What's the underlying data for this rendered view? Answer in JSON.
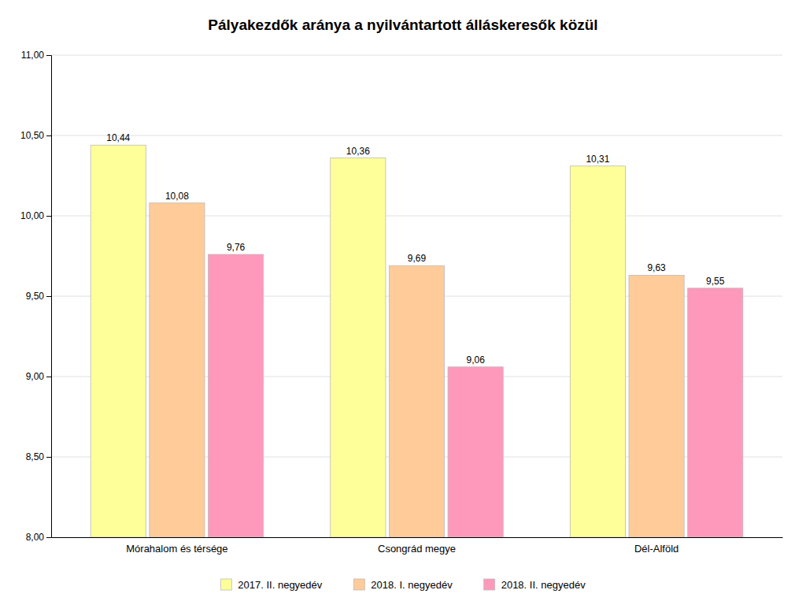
{
  "chart_data": {
    "type": "bar",
    "title": "Pályakezdők aránya a nyilvántartott álláskeresők közül",
    "categories": [
      "Mórahalom és térsége",
      "Csongrád megye",
      "Dél-Alföld"
    ],
    "series": [
      {
        "name": "2017. II. negyedév",
        "color": "#FFFF99",
        "values": [
          10.44,
          10.36,
          10.31
        ],
        "value_labels": [
          "10,44",
          "10,36",
          "10,31"
        ]
      },
      {
        "name": "2018. I. negyedév",
        "color": "#FFCC99",
        "values": [
          10.08,
          9.69,
          9.63
        ],
        "value_labels": [
          "10,08",
          "9,69",
          "9,63"
        ]
      },
      {
        "name": "2018. II. negyedév",
        "color": "#FF99BB",
        "values": [
          9.76,
          9.06,
          9.55
        ],
        "value_labels": [
          "9,76",
          "9,06",
          "9,55"
        ]
      }
    ],
    "ylim": [
      8.0,
      11.0
    ],
    "yticks": [
      {
        "value": 8.0,
        "label": "8,00"
      },
      {
        "value": 8.5,
        "label": "8,50"
      },
      {
        "value": 9.0,
        "label": "9,00"
      },
      {
        "value": 9.5,
        "label": "9,50"
      },
      {
        "value": 10.0,
        "label": "10,00"
      },
      {
        "value": 10.5,
        "label": "10,50"
      },
      {
        "value": 11.0,
        "label": "11,00"
      }
    ],
    "grid": true,
    "legend": "bottom",
    "data_labels": true
  }
}
